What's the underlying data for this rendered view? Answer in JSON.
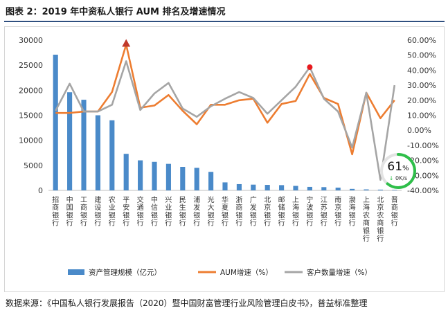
{
  "title": "图表 2：2019 年中资私人银行 AUM 排名及增速情况",
  "source": "数据来源：《中国私人银行发展报告（2020）暨中国财富管理行业风险管理白皮书》，普益标准整理",
  "chart_data": {
    "type": "bar",
    "categories": [
      "招商银行",
      "中国银行",
      "工商银行",
      "建设银行",
      "农业银行",
      "平安银行",
      "交通银行",
      "中信银行",
      "兴业银行",
      "民生银行",
      "浦发银行",
      "光大银行",
      "华夏银行",
      "浙商银行",
      "广发银行",
      "北京银行",
      "邮储银行",
      "上海银行",
      "宁波银行",
      "江苏银行",
      "南京银行",
      "渤海银行",
      "上海农商银行",
      "北京农商银行",
      "晋商银行"
    ],
    "series": [
      {
        "name": "资产管理规模（亿元）",
        "axis": "left",
        "kind": "bar",
        "color": "#4a8ac9",
        "values": [
          27100,
          19600,
          18100,
          15000,
          14000,
          7300,
          6000,
          5700,
          5300,
          4700,
          4500,
          3700,
          1600,
          1250,
          1150,
          1100,
          1050,
          900,
          700,
          650,
          550,
          300,
          200,
          150,
          100
        ]
      },
      {
        "name": "AUM增速（%）",
        "axis": "right",
        "kind": "line",
        "color": "#ed7d31",
        "values": [
          11.5,
          11.5,
          12.5,
          12.5,
          25.5,
          57.0,
          15.0,
          16.5,
          23.5,
          13.0,
          4.0,
          17.0,
          17.0,
          20.0,
          21.0,
          5.0,
          17.5,
          19.5,
          37.5,
          21.5,
          17.5,
          -16.0,
          25.0,
          8.0,
          20.0
        ]
      },
      {
        "name": "客户数量增速（%）",
        "axis": "right",
        "kind": "line",
        "color": "#a5a5a5",
        "values": [
          13.0,
          31.0,
          12.5,
          12.5,
          17.0,
          46.0,
          13.5,
          24.5,
          31.5,
          14.5,
          9.0,
          16.0,
          21.0,
          25.5,
          21.5,
          11.0,
          20.0,
          29.0,
          42.0,
          21.0,
          12.5,
          -11.5,
          25.0,
          -33.0,
          30.0
        ]
      }
    ],
    "markers": [
      {
        "series": 1,
        "index": 5,
        "shape": "triangle",
        "color": "#c0392b"
      },
      {
        "series": 2,
        "index": 18,
        "shape": "circle",
        "color": "#e8191e"
      }
    ],
    "left_axis": {
      "min": 0,
      "max": 30000,
      "step": 5000,
      "labels": [
        "0",
        "5000",
        "10000",
        "15000",
        "20000",
        "25000",
        "30000"
      ]
    },
    "right_axis": {
      "min": -40,
      "max": 60,
      "step": 10,
      "labels": [
        "-40.00%",
        "-30.00%",
        "-20.00%",
        "-10.00%",
        "0.00%",
        "10.00%",
        "20.00%",
        "30.00%",
        "40.00%",
        "50.00%",
        "60.00%"
      ]
    },
    "legend_position": "bottom",
    "gridlines": false
  },
  "overlay": {
    "percent": "61",
    "percent_sign": "%",
    "speed": "0K/s",
    "arrow": "↓",
    "fraction": 0.61,
    "ring_color": "#2fbf4a"
  }
}
